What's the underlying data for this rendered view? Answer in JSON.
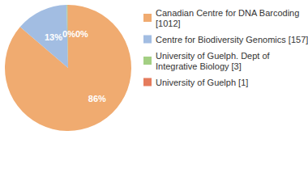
{
  "chart_data": {
    "type": "pie",
    "categories": [
      "Canadian Centre for DNA Barcoding [1012]",
      "Centre for Biodiversity Genomics [157]",
      "University of Guelph. Dept of Integrative Biology [3]",
      "University of Guelph [1]"
    ],
    "values": [
      86.27,
      13.38,
      0.26,
      0.09
    ],
    "value_labels": [
      "86%",
      "13%",
      "0%",
      "0%"
    ],
    "colors": [
      "#f0ab70",
      "#a2bde2",
      "#a3cf83",
      "#e57b5c"
    ],
    "data_labels": true,
    "legend": "top-right"
  }
}
